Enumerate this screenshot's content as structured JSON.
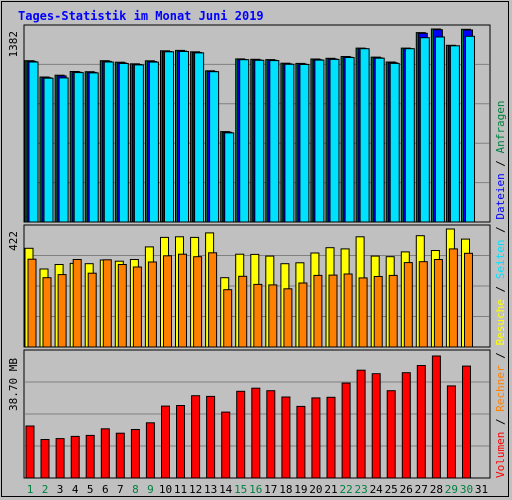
{
  "chart_data": {
    "title": "Tages-Statistik im Monat Juni 2019",
    "type": "bar",
    "categories": [
      "1",
      "2",
      "3",
      "4",
      "5",
      "6",
      "7",
      "8",
      "9",
      "10",
      "11",
      "12",
      "13",
      "14",
      "15",
      "16",
      "17",
      "18",
      "19",
      "20",
      "21",
      "22",
      "23",
      "24",
      "25",
      "26",
      "27",
      "28",
      "29",
      "30",
      "31"
    ],
    "weekend_days": [
      "1",
      "2",
      "8",
      "9",
      "15",
      "16",
      "22",
      "23",
      "29",
      "30"
    ],
    "colors": {
      "title": "#0000ff",
      "anfragen": "#008040",
      "dateien": "#0000ff",
      "seiten": "#00e0ff",
      "besuche": "#ffff00",
      "rechner": "#ff8000",
      "volumen": "#ff0000",
      "weekend_label": "#008040",
      "weekday_label": "#000000"
    },
    "panels": [
      {
        "name": "top",
        "max_label": "1382",
        "max": 1382,
        "series": [
          {
            "name": "Anfragen",
            "values": [
              1155,
              1038,
              1051,
              1078,
              1076,
              1155,
              1144,
              1133,
              1154,
              1226,
              1229,
              1219,
              1083,
              647,
              1168,
              1165,
              1163,
              1137,
              1136,
              1167,
              1172,
              1185,
              1245,
              1181,
              1146,
              1245,
              1356,
              1382,
              1265,
              1380,
              null
            ]
          },
          {
            "name": "Dateien",
            "values": [
              1150,
              1033,
              1046,
              1073,
              1071,
              1150,
              1139,
              1128,
              1149,
              1221,
              1224,
              1214,
              1078,
              642,
              1163,
              1160,
              1158,
              1132,
              1131,
              1162,
              1167,
              1180,
              1240,
              1176,
              1141,
              1240,
              1351,
              1377,
              1260,
              1375,
              null
            ]
          },
          {
            "name": "Seiten",
            "values": [
              1146,
              1030,
              1032,
              1070,
              1068,
              1146,
              1135,
              1125,
              1145,
              1219,
              1221,
              1211,
              1076,
              638,
              1162,
              1158,
              1156,
              1129,
              1128,
              1159,
              1164,
              1178,
              1241,
              1173,
              1136,
              1241,
              1320,
              1325,
              1262,
              1330,
              null
            ]
          }
        ]
      },
      {
        "name": "middle",
        "max_label": "422",
        "max": 422,
        "series": [
          {
            "name": "Besuche",
            "values": [
              353,
              279,
              295,
              299,
              298,
              311,
              307,
              313,
              358,
              392,
              394,
              392,
              408,
              248,
              332,
              331,
              325,
              298,
              301,
              336,
              355,
              351,
              394,
              325,
              323,
              340,
              398,
              345,
              422,
              386,
              null
            ]
          },
          {
            "name": "Rechner",
            "values": [
              314,
              248,
              259,
              313,
              264,
              312,
              295,
              286,
              304,
              326,
              332,
              323,
              337,
              205,
              253,
              224,
              222,
              208,
              229,
              256,
              257,
              261,
              247,
              252,
              256,
              302,
              305,
              313,
              351,
              335,
              null
            ]
          }
        ]
      },
      {
        "name": "bottom",
        "max_label": "38.70 MB",
        "max": 38.7,
        "series": [
          {
            "name": "Volumen",
            "values": [
              16.5,
              12.2,
              12.5,
              13.2,
              13.5,
              15.6,
              14.2,
              15.4,
              17.5,
              22.8,
              23.0,
              26.1,
              25.9,
              20.9,
              27.5,
              28.5,
              27.7,
              25.7,
              22.7,
              25.4,
              25.6,
              30.1,
              34.2,
              33.1,
              27.7,
              33.4,
              35.7,
              38.7,
              29.2,
              35.5,
              null
            ]
          }
        ]
      }
    ],
    "legend": [
      {
        "name": "Volumen",
        "color": "#ff0000"
      },
      {
        "name": "Rechner",
        "color": "#ff8000"
      },
      {
        "name": "Besuche",
        "color": "#ffff00"
      },
      {
        "name": "Seiten",
        "color": "#00e0ff"
      },
      {
        "name": "Dateien",
        "color": "#0000ff"
      },
      {
        "name": "Anfragen",
        "color": "#008040"
      }
    ],
    "legend_separator": "/"
  }
}
